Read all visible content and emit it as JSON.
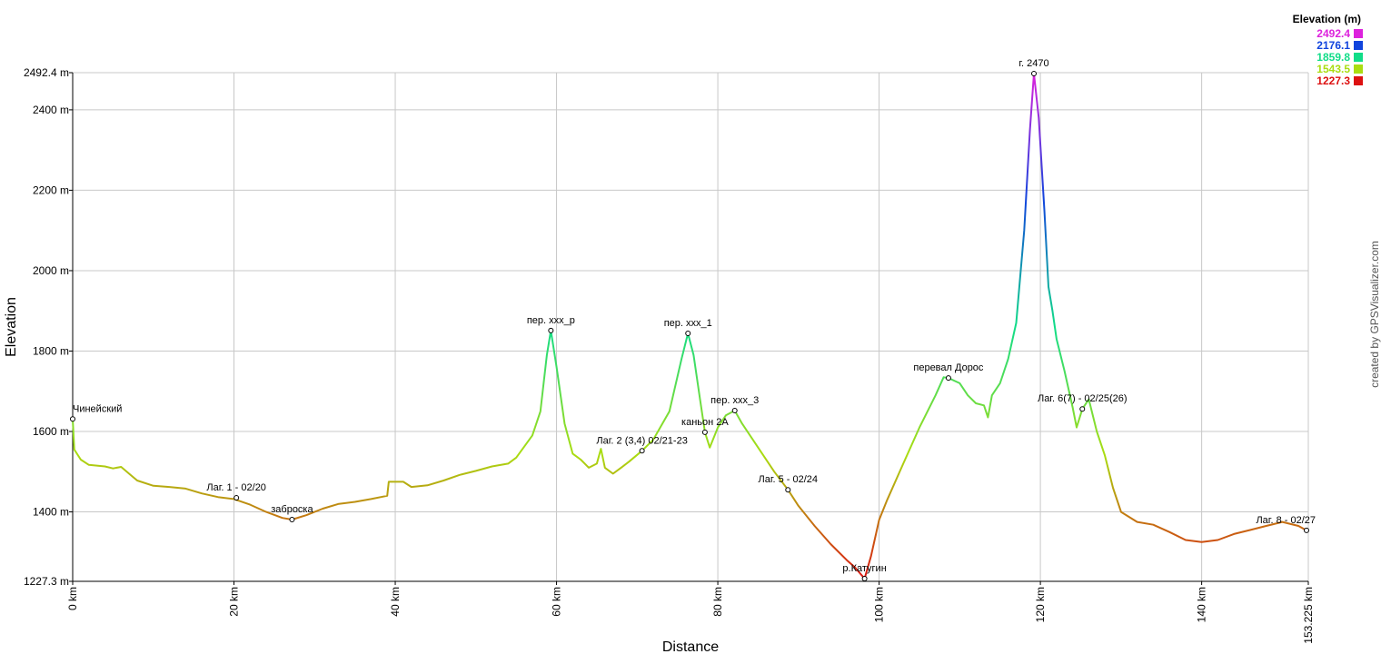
{
  "chart_data": {
    "type": "line",
    "x_label": "Distance",
    "y_label": "Elevation",
    "credit": "created by GPSVisualizer.com",
    "xlim": [
      0,
      153.225
    ],
    "ylim": [
      1227.3,
      2492.4
    ],
    "xticks": [
      {
        "value": 0,
        "label": "0 km"
      },
      {
        "value": 20,
        "label": "20 km"
      },
      {
        "value": 40,
        "label": "40 km"
      },
      {
        "value": 60,
        "label": "60 km"
      },
      {
        "value": 80,
        "label": "80 km"
      },
      {
        "value": 100,
        "label": "100 km"
      },
      {
        "value": 120,
        "label": "120 km"
      },
      {
        "value": 140,
        "label": "140 km"
      },
      {
        "value": 153.225,
        "label": "153.225 km"
      }
    ],
    "yticks": [
      {
        "value": 1227.3,
        "label": "1227.3 m"
      },
      {
        "value": 1400,
        "label": "1400 m"
      },
      {
        "value": 1600,
        "label": "1600 m"
      },
      {
        "value": 1800,
        "label": "1800 m"
      },
      {
        "value": 2000,
        "label": "2000 m"
      },
      {
        "value": 2200,
        "label": "2200 m"
      },
      {
        "value": 2400,
        "label": "2400 m"
      },
      {
        "value": 2492.4,
        "label": "2492.4 m"
      }
    ],
    "grid": true,
    "legend": {
      "title": "Elevation (m)",
      "position": "top-right",
      "items": [
        {
          "value": 2492.4,
          "color": "#dd22dd"
        },
        {
          "value": 2176.1,
          "color": "#1144dd"
        },
        {
          "value": 1859.8,
          "color": "#11dd88"
        },
        {
          "value": 1543.5,
          "color": "#aadd11"
        },
        {
          "value": 1227.3,
          "color": "#dd1111"
        }
      ]
    },
    "x": [
      0,
      0.2,
      1,
      2,
      4,
      5,
      6,
      7,
      8,
      10,
      12,
      14,
      16,
      18,
      20,
      22,
      24,
      26,
      27.2,
      29,
      31,
      33,
      35,
      37,
      39,
      39.2,
      41,
      42,
      44,
      46,
      48,
      50,
      52,
      54,
      55,
      57,
      58,
      58.8,
      59.3,
      60,
      61,
      62,
      63,
      64,
      65,
      65.5,
      66,
      67,
      68,
      69,
      70.6,
      72,
      74,
      75.5,
      76.3,
      77,
      77.8,
      78.4,
      79,
      80,
      81,
      82.1,
      83,
      85,
      87,
      88.7,
      90,
      92,
      94,
      96,
      97,
      98.2,
      99,
      100,
      101,
      103,
      105,
      107,
      108,
      108.6,
      110,
      111,
      112,
      113,
      113.5,
      114,
      115,
      116,
      117,
      118,
      118.7,
      119.2,
      119.8,
      120.5,
      121,
      121.5,
      122,
      123,
      124,
      124.5,
      125.2,
      126,
      127,
      128,
      129,
      130,
      132,
      134,
      136,
      138,
      140,
      142,
      144,
      146,
      148,
      150,
      152,
      153,
      153.225
    ],
    "series": [
      {
        "name": "Elevation",
        "values": [
          1631,
          1555,
          1530,
          1517,
          1513,
          1508,
          1512,
          1495,
          1478,
          1465,
          1462,
          1458,
          1446,
          1437,
          1432,
          1418,
          1400,
          1385,
          1381,
          1392,
          1408,
          1420,
          1425,
          1432,
          1440,
          1475,
          1475,
          1462,
          1466,
          1478,
          1492,
          1502,
          1513,
          1520,
          1535,
          1590,
          1650,
          1790,
          1851,
          1760,
          1620,
          1545,
          1530,
          1510,
          1520,
          1557,
          1510,
          1495,
          1510,
          1525,
          1552,
          1580,
          1650,
          1780,
          1844,
          1790,
          1680,
          1598,
          1560,
          1610,
          1640,
          1652,
          1620,
          1560,
          1500,
          1455,
          1415,
          1365,
          1320,
          1280,
          1262,
          1234,
          1290,
          1380,
          1430,
          1520,
          1610,
          1690,
          1735,
          1733,
          1720,
          1690,
          1670,
          1665,
          1635,
          1690,
          1720,
          1780,
          1870,
          2100,
          2350,
          2490,
          2380,
          2150,
          1960,
          1900,
          1830,
          1750,
          1660,
          1610,
          1656,
          1680,
          1600,
          1540,
          1460,
          1400,
          1375,
          1368,
          1350,
          1330,
          1325,
          1330,
          1345,
          1355,
          1365,
          1375,
          1365,
          1354,
          1354
        ]
      }
    ],
    "annotations": [
      {
        "label": "Чинейский",
        "x": 0,
        "y": 1631
      },
      {
        "label": "Лаг. 1 - 02/20",
        "x": 20.3,
        "y": 1435
      },
      {
        "label": "заброска",
        "x": 27.2,
        "y": 1381
      },
      {
        "label": "пер. xxx_р",
        "x": 59.3,
        "y": 1851
      },
      {
        "label": "Лаг. 2 (3,4) 02/21-23",
        "x": 70.6,
        "y": 1552
      },
      {
        "label": "пер. xxx_1",
        "x": 76.3,
        "y": 1844
      },
      {
        "label": "каньон 2А",
        "x": 78.4,
        "y": 1598
      },
      {
        "label": "пер. xxx_3",
        "x": 82.1,
        "y": 1652
      },
      {
        "label": "Лаг. 5 - 02/24",
        "x": 88.7,
        "y": 1455
      },
      {
        "label": "р.Катугин",
        "x": 98.2,
        "y": 1234
      },
      {
        "label": "перевал Дорос",
        "x": 108.6,
        "y": 1733
      },
      {
        "label": "г. 2470",
        "x": 119.2,
        "y": 2490
      },
      {
        "label": "Лаг. 6(7) - 02/25(26)",
        "x": 125.2,
        "y": 1656
      },
      {
        "label": "Лаг. 8 - 02/27",
        "x": 153,
        "y": 1354
      }
    ]
  }
}
